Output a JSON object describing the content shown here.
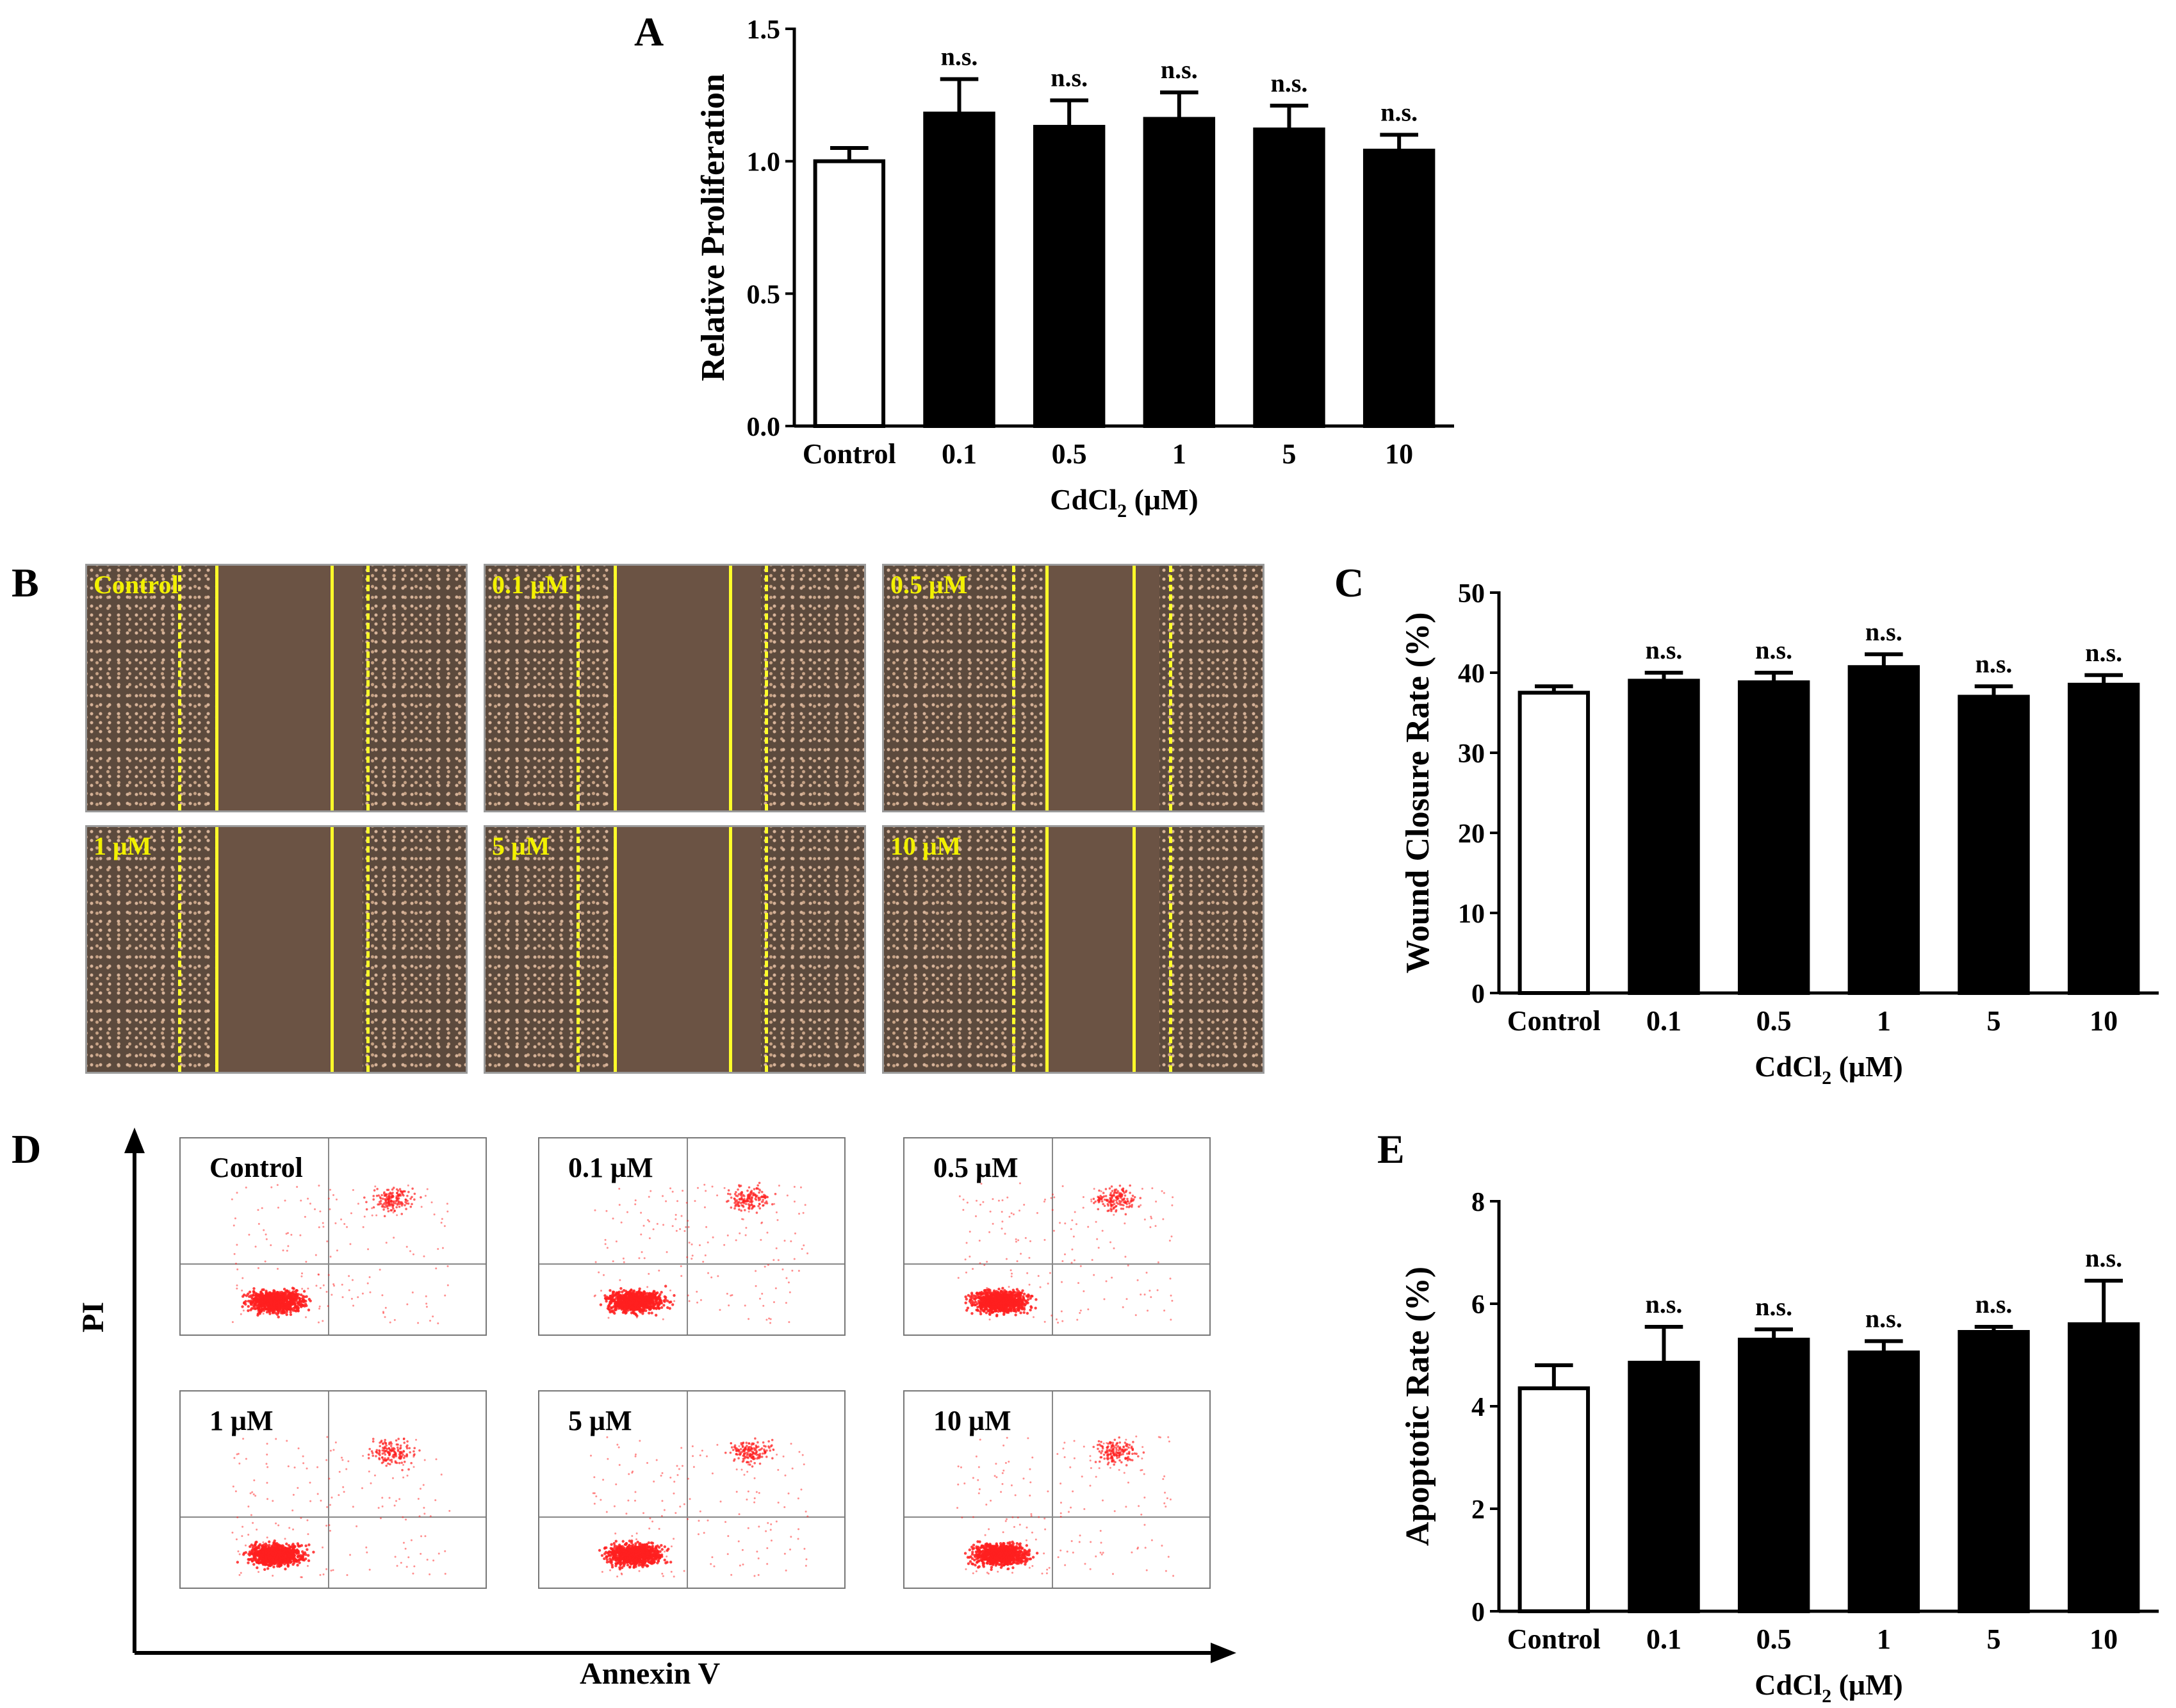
{
  "panels": {
    "A": "A",
    "B": "B",
    "C": "C",
    "D": "D",
    "E": "E"
  },
  "colors": {
    "bar_control": "#ffffff",
    "bar_treated": "#000000",
    "scratch_line": "#ffff2a",
    "flow_dots": "#ff2020"
  },
  "chart_data": [
    {
      "id": "A",
      "type": "bar",
      "title": "",
      "categories": [
        "Control",
        "0.1",
        "0.5",
        "1",
        "5",
        "10"
      ],
      "values": [
        1.0,
        1.18,
        1.13,
        1.16,
        1.12,
        1.04
      ],
      "errors": [
        0.05,
        0.13,
        0.1,
        0.1,
        0.09,
        0.06
      ],
      "annotations": [
        "",
        "n.s.",
        "n.s.",
        "n.s.",
        "n.s.",
        "n.s."
      ],
      "ylabel": "Relative Proliferation",
      "xlabel_main": "CdCl",
      "xlabel_sub": "2",
      "xlabel_unit": " (μM)",
      "ylim": [
        0,
        1.5
      ],
      "yticks": [
        "0.0",
        "0.5",
        "1.0",
        "1.5"
      ]
    },
    {
      "id": "C",
      "type": "bar",
      "title": "",
      "categories": [
        "Control",
        "0.1",
        "0.5",
        "1",
        "5",
        "10"
      ],
      "values": [
        37.5,
        39.0,
        38.8,
        40.7,
        37.0,
        38.5
      ],
      "errors": [
        0.8,
        1.0,
        1.2,
        1.6,
        1.3,
        1.2
      ],
      "annotations": [
        "",
        "n.s.",
        "n.s.",
        "n.s.",
        "n.s.",
        "n.s."
      ],
      "ylabel": "Wound Closure Rate (%)",
      "xlabel_main": "CdCl",
      "xlabel_sub": "2",
      "xlabel_unit": " (μM)",
      "ylim": [
        0,
        50
      ],
      "yticks": [
        "0",
        "10",
        "20",
        "30",
        "40",
        "50"
      ]
    },
    {
      "id": "E",
      "type": "bar",
      "title": "",
      "categories": [
        "Control",
        "0.1",
        "0.5",
        "1",
        "5",
        "10"
      ],
      "values": [
        4.35,
        4.85,
        5.3,
        5.05,
        5.45,
        5.6
      ],
      "errors": [
        0.45,
        0.7,
        0.2,
        0.22,
        0.1,
        0.85
      ],
      "annotations": [
        "",
        "n.s.",
        "n.s.",
        "n.s.",
        "n.s.",
        "n.s."
      ],
      "ylabel": "Apoptotic Rate (%)",
      "xlabel_main": "CdCl",
      "xlabel_sub": "2",
      "xlabel_unit": " (μM)",
      "ylim": [
        0,
        8
      ],
      "yticks": [
        "0",
        "2",
        "4",
        "6",
        "8"
      ]
    }
  ],
  "scratch_images": [
    {
      "label": "Control"
    },
    {
      "label": "0.1 μM"
    },
    {
      "label": "0.5 μM"
    },
    {
      "label": "1 μM"
    },
    {
      "label": "5 μM"
    },
    {
      "label": "10 μM"
    }
  ],
  "flow_plots": {
    "y_axis_label": "PI",
    "x_axis_label": "Annexin V",
    "plots": [
      {
        "label": "Control"
      },
      {
        "label": "0.1 μM"
      },
      {
        "label": "0.5 μM"
      },
      {
        "label": "1 μM"
      },
      {
        "label": "5 μM"
      },
      {
        "label": "10 μM"
      }
    ]
  }
}
